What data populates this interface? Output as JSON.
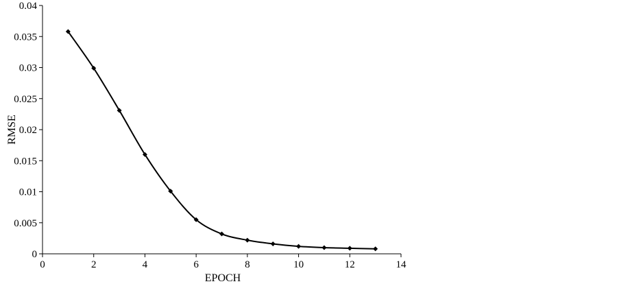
{
  "chart_data": {
    "type": "line",
    "title": "",
    "xlabel": "EPOCH",
    "ylabel": "RMSE",
    "xlim": [
      0,
      14
    ],
    "ylim": [
      0,
      0.04
    ],
    "xticks": [
      0,
      2,
      4,
      6,
      8,
      10,
      12,
      14
    ],
    "yticks": [
      0,
      0.005,
      0.01,
      0.015,
      0.02,
      0.025,
      0.03,
      0.035,
      0.04
    ],
    "ytick_labels": [
      "0",
      "0.005",
      "0.01",
      "0.015",
      "0.02",
      "0.025",
      "0.03",
      "0.035",
      "0.04"
    ],
    "grid": false,
    "legend": "none",
    "series": [
      {
        "color": "#000000",
        "marker": "diamond",
        "x": [
          1,
          2,
          3,
          4,
          5,
          6,
          7,
          8,
          9,
          10,
          11,
          12,
          13
        ],
        "y": [
          0.0358,
          0.0299,
          0.0231,
          0.016,
          0.0101,
          0.0055,
          0.0032,
          0.0022,
          0.0016,
          0.0012,
          0.001,
          0.0009,
          0.0008
        ]
      }
    ]
  }
}
